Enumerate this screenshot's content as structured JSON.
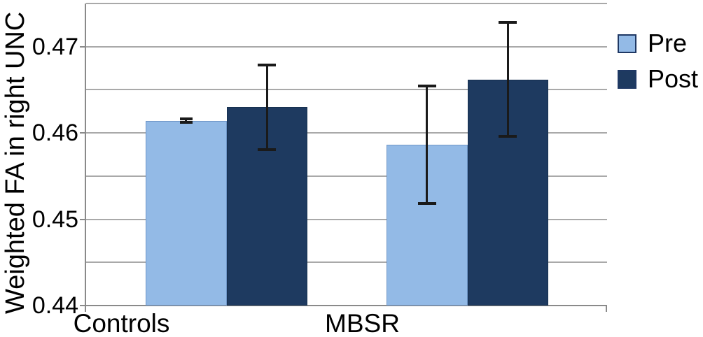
{
  "chart_data": {
    "type": "bar",
    "title": "",
    "xlabel": "",
    "ylabel": "Weighted FA in right UNC",
    "categories": [
      "Controls",
      "MBSR"
    ],
    "series": [
      {
        "name": "Pre",
        "color": "#93BAE6",
        "edge_color": "#6F96C8",
        "values": [
          0.4614,
          0.4586
        ],
        "errors": [
          0.0002,
          0.0068
        ]
      },
      {
        "name": "Post",
        "color": "#1E3A60",
        "edge_color": "#16304F",
        "values": [
          0.463,
          0.4662
        ],
        "errors": [
          0.0049,
          0.0066
        ]
      }
    ],
    "ylim": [
      0.44,
      0.475
    ],
    "grid": true,
    "grid_step": 0.005,
    "yticks": [
      {
        "value": 0.44,
        "label": "0.44"
      },
      {
        "value": 0.45,
        "label": "0.45"
      },
      {
        "value": 0.46,
        "label": "0.46"
      },
      {
        "value": 0.47,
        "label": "0.47"
      }
    ],
    "legend_position": "right-top",
    "colors": {
      "grid": "#A9A9A9",
      "axis": "#8A8A8A",
      "error_bar": "#1A1A1A",
      "text": "#000000",
      "background": "#FFFFFF",
      "legend_swatch_border": "#1F3864"
    }
  }
}
